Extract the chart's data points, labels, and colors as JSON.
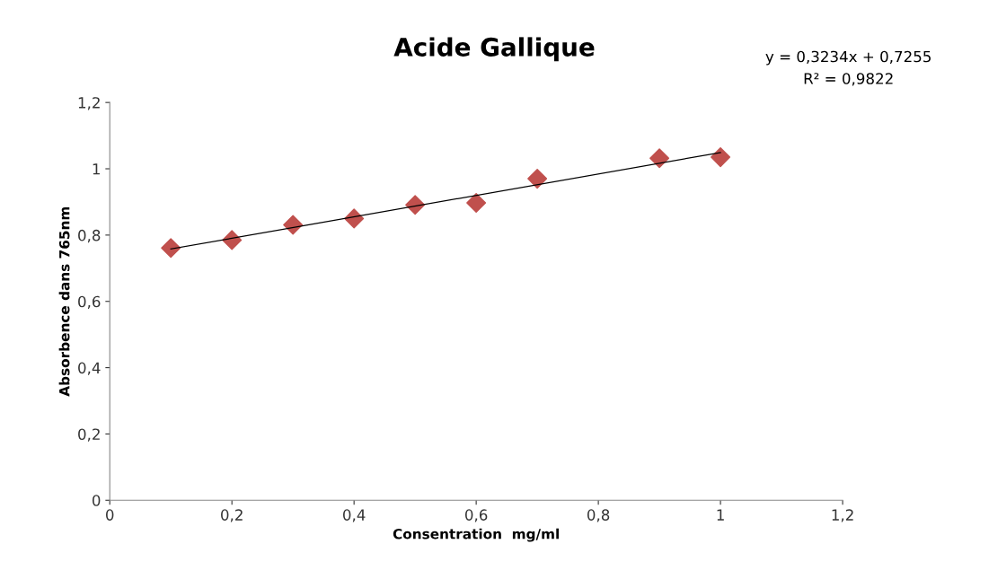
{
  "chart_data": {
    "type": "scatter",
    "title": "Acide Gallique",
    "xlabel": "Consentration  mg/ml",
    "ylabel": "Absorbence dans 765nm",
    "annotations": [
      "y = 0,3234x + 0,7255",
      "R² = 0,9822"
    ],
    "x": [
      0.1,
      0.2,
      0.3,
      0.4,
      0.5,
      0.6,
      0.7,
      0.9,
      1.0
    ],
    "series": [
      {
        "color": "#c0504d",
        "marker": "diamond",
        "values": [
          0.761,
          0.785,
          0.831,
          0.85,
          0.891,
          0.897,
          0.97,
          1.032,
          1.035
        ]
      },
      {
        "type": "line",
        "color": "#000000",
        "marker": "none",
        "x": [
          0.1,
          1.0
        ],
        "values": [
          0.758,
          1.049
        ]
      }
    ],
    "xlim": [
      0,
      1.2
    ],
    "ylim": [
      0,
      1.2
    ],
    "xticks": [
      0,
      {
        "value": 0.2,
        "label": "0,2"
      },
      {
        "value": 0.4,
        "label": "0,4"
      },
      {
        "value": 0.6,
        "label": "0,6"
      },
      {
        "value": 0.8,
        "label": "0,8"
      },
      1,
      {
        "value": 1.2,
        "label": "1,2"
      }
    ],
    "yticks": [
      0,
      {
        "value": 0.2,
        "label": "0,2"
      },
      {
        "value": 0.4,
        "label": "0,4"
      },
      {
        "value": 0.6,
        "label": "0,6"
      },
      {
        "value": 0.8,
        "label": "0,8"
      },
      1,
      {
        "value": 1.2,
        "label": "1,2"
      }
    ],
    "grid": false,
    "legend": false
  }
}
